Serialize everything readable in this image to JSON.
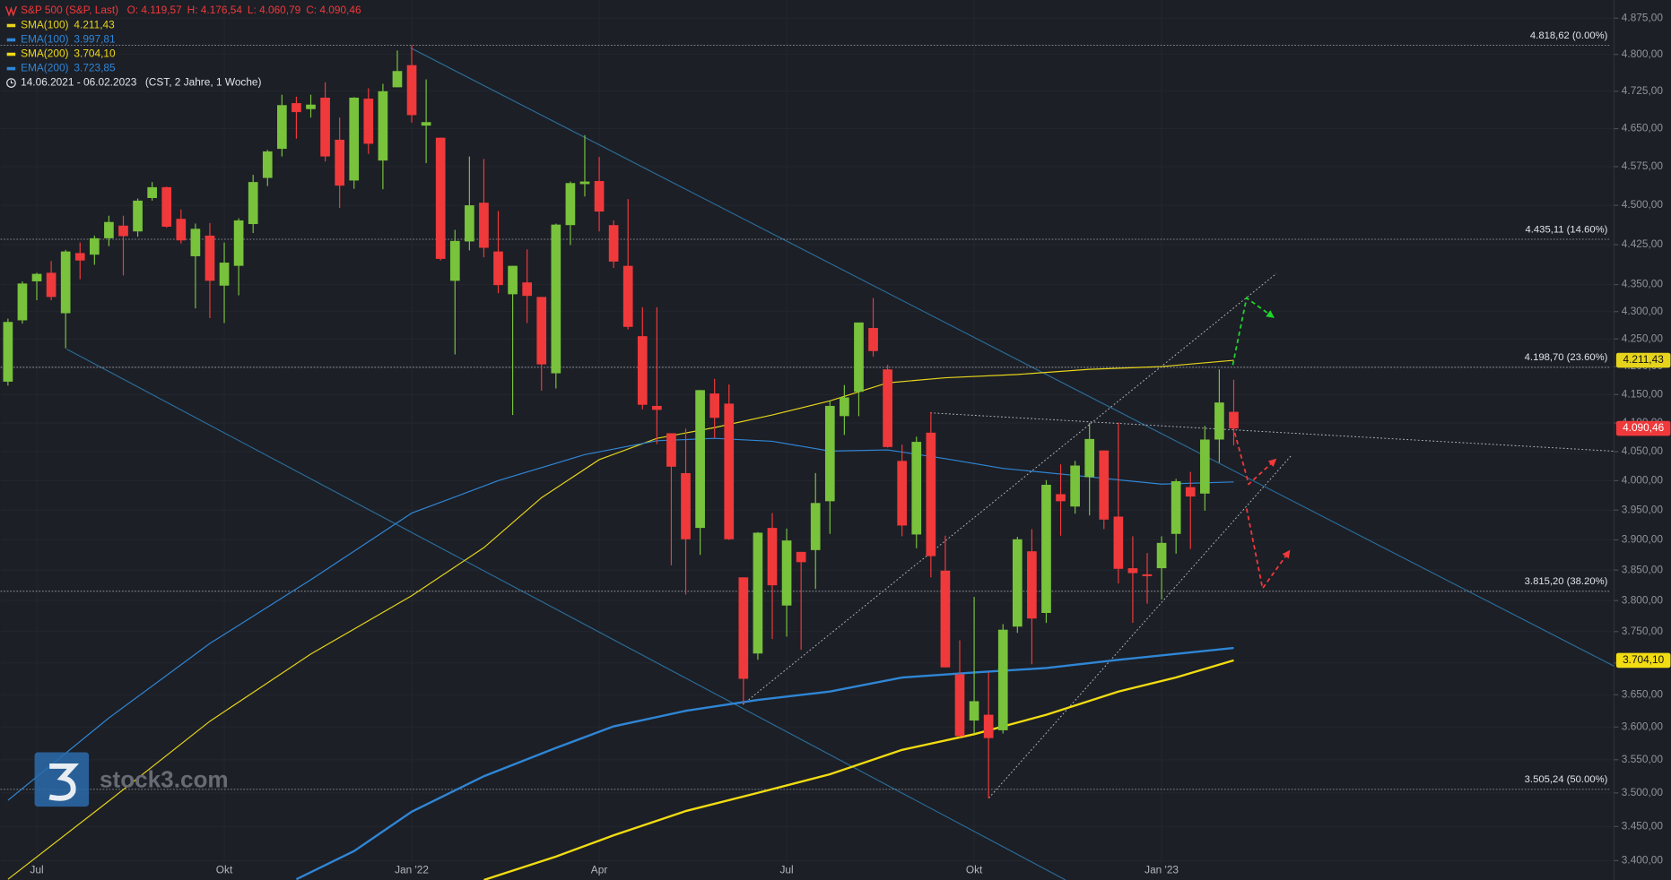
{
  "chart_data": {
    "type": "candlestick",
    "title": "S&P 500 (S&P, Last)",
    "ohlc_labels": [
      "O: 4.119,57",
      "H: 4.176,54",
      "L: 4.060,79",
      "C: 4.090,46"
    ],
    "date_range": "14.06.2021 - 06.02.2023",
    "range_info": "(CST, 2 Jahre, 1 Woche)",
    "watermark": "stock3.com",
    "log_scale": true,
    "grid": true,
    "up_color": "#78c23c",
    "down_color": "#f0393b",
    "ylim": [
      3372,
      4913
    ],
    "yticks": [
      {
        "value": 4875,
        "label": "4.875,00"
      },
      {
        "value": 4800,
        "label": "4.800,00"
      },
      {
        "value": 4725,
        "label": "4.725,00"
      },
      {
        "value": 4650,
        "label": "4.650,00"
      },
      {
        "value": 4575,
        "label": "4.575,00"
      },
      {
        "value": 4500,
        "label": "4.500,00"
      },
      {
        "value": 4425,
        "label": "4.425,00"
      },
      {
        "value": 4350,
        "label": "4.350,00"
      },
      {
        "value": 4300,
        "label": "4.300,00"
      },
      {
        "value": 4250,
        "label": "4.250,00"
      },
      {
        "value": 4200,
        "label": "4.200,00"
      },
      {
        "value": 4150,
        "label": "4.150,00"
      },
      {
        "value": 4100,
        "label": "4.100,00"
      },
      {
        "value": 4050,
        "label": "4.050,00"
      },
      {
        "value": 4000,
        "label": "4.000,00"
      },
      {
        "value": 3950,
        "label": "3.950,00"
      },
      {
        "value": 3900,
        "label": "3.900,00"
      },
      {
        "value": 3850,
        "label": "3.850,00"
      },
      {
        "value": 3800,
        "label": "3.800,00"
      },
      {
        "value": 3750,
        "label": "3.750,00"
      },
      {
        "value": 3700,
        "label": "3.700,00"
      },
      {
        "value": 3650,
        "label": "3.650,00"
      },
      {
        "value": 3600,
        "label": "3.600,00"
      },
      {
        "value": 3550,
        "label": "3.550,00"
      },
      {
        "value": 3500,
        "label": "3.500,00"
      },
      {
        "value": 3450,
        "label": "3.450,00"
      },
      {
        "value": 3400,
        "label": "3.400,00"
      }
    ],
    "categories": [
      null,
      null,
      "Jul",
      null,
      null,
      null,
      null,
      null,
      null,
      null,
      null,
      null,
      null,
      null,
      null,
      "Okt",
      null,
      null,
      null,
      null,
      null,
      null,
      null,
      null,
      null,
      null,
      null,
      null,
      "Jan '22",
      null,
      null,
      null,
      null,
      null,
      null,
      null,
      null,
      null,
      null,
      null,
      null,
      "Apr",
      null,
      null,
      null,
      null,
      null,
      null,
      null,
      null,
      null,
      null,
      null,
      null,
      "Jul",
      null,
      null,
      null,
      null,
      null,
      null,
      null,
      null,
      null,
      null,
      null,
      null,
      "Okt",
      null,
      null,
      null,
      null,
      null,
      null,
      null,
      null,
      null,
      null,
      null,
      null,
      "Jan '23",
      null,
      null,
      null,
      null,
      null
    ],
    "open": [
      4173,
      4284,
      4356,
      4372,
      4297,
      4409,
      4406,
      4437,
      4461,
      4450,
      4514,
      4535,
      4474,
      4403,
      4442,
      4348,
      4385,
      4464,
      4553,
      4610,
      4701,
      4689,
      4712,
      4628,
      4548,
      4710,
      4587,
      4733,
      4778,
      4656,
      4632,
      4357,
      4431,
      4505,
      4412,
      4332,
      4354,
      4327,
      4188,
      4462,
      4541,
      4547,
      4462,
      4385,
      4255,
      4130,
      4082,
      4013,
      3920,
      4152,
      4134,
      3838,
      3715,
      3920,
      3792,
      3880,
      3883,
      3965,
      4112,
      4155,
      4270,
      4195,
      4034,
      3909,
      4083,
      3849,
      3682,
      3610,
      3619,
      3595,
      3758,
      3881,
      3780,
      3977,
      3956,
      4006,
      4052,
      3939,
      3853,
      3843,
      3853,
      3910,
      3989,
      3978,
      4071,
      4119.57
    ],
    "high": [
      4287,
      4356,
      4372,
      4394,
      4415,
      4429,
      4442,
      4480,
      4480,
      4513,
      4545,
      4536,
      4492,
      4465,
      4466,
      4429,
      4475,
      4559,
      4608,
      4718,
      4714,
      4718,
      4743,
      4672,
      4713,
      4731,
      4740,
      4808,
      4819,
      4749,
      4632,
      4453,
      4595,
      4590,
      4489,
      4385,
      4416,
      4327,
      4465,
      4546,
      4637,
      4594,
      4471,
      4512,
      4308,
      4308,
      4082,
      4090,
      4158,
      4178,
      4168,
      3838,
      3913,
      3945,
      3919,
      3880,
      4013,
      4140,
      4167,
      4280,
      4325,
      4203,
      4062,
      4076,
      4119,
      3907,
      3736,
      3806,
      3685,
      3762,
      3905,
      3918,
      4001,
      4028,
      4034,
      4100,
      4052,
      4101,
      3906,
      3878,
      3906,
      4003,
      4015,
      4095,
      4195,
      4176.54
    ],
    "low": [
      4166,
      4278,
      4321,
      4321,
      4233,
      4360,
      4387,
      4422,
      4367,
      4440,
      4509,
      4457,
      4427,
      4306,
      4288,
      4279,
      4330,
      4447,
      4537,
      4595,
      4630,
      4672,
      4585,
      4495,
      4532,
      4600,
      4531,
      4733,
      4662,
      4582,
      4395,
      4222,
      4414,
      4401,
      4334,
      4114,
      4279,
      4157,
      4161,
      4424,
      4517,
      4450,
      4381,
      4267,
      4124,
      4063,
      3858,
      3810,
      3875,
      4074,
      3900,
      3637,
      3705,
      3738,
      3742,
      3721,
      3819,
      3910,
      4079,
      4112,
      4218,
      4057,
      3906,
      3886,
      3838,
      3693,
      3584,
      3590,
      3492,
      3590,
      3748,
      3698,
      3764,
      3907,
      3944,
      3941,
      3918,
      3828,
      3764,
      3795,
      3802,
      3877,
      3885,
      3949,
      4031,
      4060.79
    ],
    "close": [
      4281,
      4352,
      4370,
      4327,
      4412,
      4395,
      4437,
      4468,
      4441,
      4509,
      4535,
      4459,
      4433,
      4455,
      4357,
      4391,
      4471,
      4545,
      4605,
      4697,
      4683,
      4698,
      4595,
      4538,
      4712,
      4620,
      4725,
      4766,
      4677,
      4663,
      4398,
      4432,
      4500,
      4419,
      4349,
      4385,
      4329,
      4204,
      4463,
      4543,
      4546,
      4488,
      4393,
      4272,
      4132,
      4123,
      4024,
      3901,
      4158,
      4109,
      3901,
      3675,
      3912,
      3825,
      3899,
      3863,
      3962,
      4130,
      4145,
      4280,
      4228,
      4058,
      3924,
      4067,
      3873,
      3693,
      3586,
      3640,
      3583,
      3753,
      3901,
      3771,
      3993,
      3965,
      4026,
      4072,
      3934,
      3852,
      3845,
      3840,
      3895,
      3999,
      3973,
      4071,
      4136,
      4090.46
    ],
    "close_label": "4.090,46",
    "series": [
      {
        "name": "SMA(100)",
        "color": "#e6d41c",
        "width": 1,
        "badge": true,
        "value_label": "4.211,43",
        "x": [
          0,
          7,
          14,
          21,
          28,
          33,
          37,
          41,
          45,
          49,
          53,
          57,
          61,
          65,
          70,
          75,
          80,
          85
        ],
        "values": [
          3373,
          3488,
          3609,
          3714,
          3808,
          3887,
          3971,
          4036,
          4073,
          4092,
          4114,
          4139,
          4171,
          4180,
          4186,
          4195,
          4200,
          4211.43
        ]
      },
      {
        "name": "EMA(100)",
        "color": "#2f86d6",
        "width": 1,
        "badge": false,
        "value_label": "3.997,81",
        "x": [
          0,
          7,
          14,
          21,
          28,
          34,
          40,
          45,
          49,
          53,
          57,
          61,
          65,
          69,
          74,
          80,
          85
        ],
        "values": [
          3489,
          3614,
          3731,
          3834,
          3945,
          4000,
          4045,
          4069,
          4073,
          4068,
          4051,
          4053,
          4038,
          4021,
          4009,
          3994,
          3997.81
        ]
      },
      {
        "name": "SMA(200)",
        "color": "#f2dc12",
        "width": 2,
        "badge": true,
        "value_label": "3.704,10",
        "x": [
          33,
          38,
          42,
          47,
          52,
          57,
          62,
          67,
          72,
          77,
          81,
          85
        ],
        "values": [
          3372,
          3406,
          3437,
          3473,
          3500,
          3528,
          3565,
          3589,
          3619,
          3655,
          3677,
          3704.1
        ]
      },
      {
        "name": "EMA(200)",
        "color": "#2f86d6",
        "width": 2,
        "badge": false,
        "value_label": "3.723,85",
        "x": [
          20,
          24,
          28,
          33,
          38,
          42,
          47,
          52,
          57,
          62,
          67,
          72,
          77,
          85
        ],
        "values": [
          3373,
          3414,
          3472,
          3525,
          3568,
          3601,
          3625,
          3642,
          3655,
          3677,
          3685,
          3692,
          3705,
          3723.85
        ]
      }
    ],
    "fib_levels": [
      {
        "value": 4818.62,
        "label": "4.818,62 (0.00%)"
      },
      {
        "value": 4435.11,
        "label": "4.435,11 (14.60%)"
      },
      {
        "value": 4198.7,
        "label": "4.198,70 (23.60%)"
      },
      {
        "value": 3815.2,
        "label": "3.815,20 (38.20%)"
      },
      {
        "value": 3505.24,
        "label": "3.505,24 (50.00%)"
      }
    ]
  }
}
